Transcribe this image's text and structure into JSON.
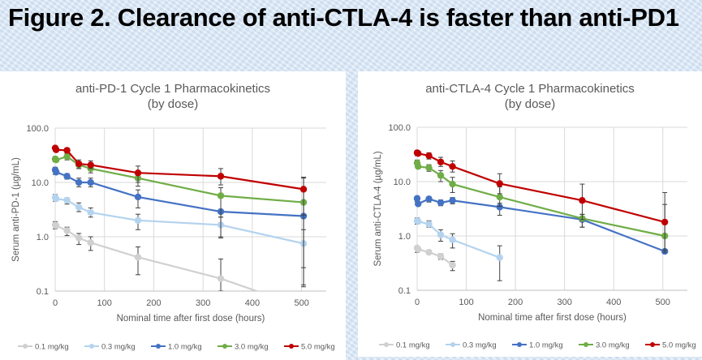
{
  "slide": {
    "title": "Figure 2. Clearance of anti-CTLA-4 is faster than anti-PD1"
  },
  "colors": {
    "0.1 mg/kg": "#d0d0d0",
    "0.3 mg/kg": "#b4d3ee",
    "1.0 mg/kg": "#4472c4",
    "3.0 mg/kg": "#70ad47",
    "5.0 mg/kg": "#c00000"
  },
  "chart_data": [
    {
      "type": "line",
      "title": "anti-PD-1 Cycle 1 Pharmacokinetics",
      "subtitle": "(by dose)",
      "xlabel": "Nominal time after first dose (hours)",
      "ylabel": "Serum anti-PD-1 (µg/mL)",
      "xlim": [
        0,
        550
      ],
      "ylim": [
        0.1,
        100
      ],
      "yscale": "log",
      "xticks": [
        "0",
        "100",
        "200",
        "300",
        "400",
        "500"
      ],
      "yticks": [
        "0.1",
        "1.0",
        "10.0",
        "100.0"
      ],
      "grid": true,
      "legend": "bottom",
      "x": [
        0,
        2,
        24,
        48,
        72,
        168,
        336,
        504
      ],
      "series": [
        {
          "name": "0.1 mg/kg",
          "values": [
            1.65,
            1.6,
            1.3,
            0.95,
            0.78,
            0.42,
            0.17,
            0.05
          ],
          "err": [
            [
              1.4,
              1.9
            ],
            null,
            [
              1.05,
              1.5
            ],
            [
              0.72,
              1.15
            ],
            [
              0.56,
              1.0
            ],
            [
              0.2,
              0.65
            ],
            [
              0.05,
              0.39
            ],
            null
          ]
        },
        {
          "name": "0.3 mg/kg",
          "values": [
            5.3,
            5.0,
            4.7,
            3.5,
            2.8,
            2.0,
            1.65,
            0.75
          ],
          "err": [
            [
              4.5,
              6.0
            ],
            null,
            [
              4.0,
              5.2
            ],
            [
              2.9,
              4.2
            ],
            [
              2.3,
              3.4
            ],
            [
              1.35,
              2.6
            ],
            [
              0.95,
              2.3
            ],
            [
              0.12,
              1.35
            ]
          ]
        },
        {
          "name": "1.0 mg/kg",
          "values": [
            17,
            15.5,
            13,
            10,
            10,
            5.4,
            2.9,
            2.4
          ],
          "err": [
            [
              14,
              19
            ],
            null,
            [
              11.5,
              14.5
            ],
            [
              8.3,
              12
            ],
            [
              8.3,
              12
            ],
            [
              3.4,
              7.3
            ],
            [
              1.0,
              3.2
            ],
            [
              0.27,
              4.3
            ]
          ]
        },
        {
          "name": "3.0 mg/kg",
          "values": [
            27,
            26,
            30,
            21,
            18,
            12,
            5.7,
            4.3
          ],
          "err": [
            [
              24,
              30
            ],
            null,
            [
              26,
              34
            ],
            [
              18,
              24
            ],
            [
              15,
              21
            ],
            [
              8.5,
              15
            ],
            [
              2.3,
              8
            ],
            [
              0.13,
              12
            ]
          ]
        },
        {
          "name": "5.0 mg/kg",
          "values": [
            43,
            40,
            39,
            22,
            21,
            15,
            13,
            7.5
          ],
          "err": [
            [
              38,
              47
            ],
            null,
            [
              35,
              43
            ],
            [
              18,
              26
            ],
            [
              18,
              25
            ],
            [
              10,
              20
            ],
            [
              9,
              18
            ],
            [
              2.5,
              12.5
            ]
          ]
        }
      ]
    },
    {
      "type": "line",
      "title": "anti-CTLA-4 Cycle 1 Pharmacokinetics",
      "subtitle": "(by dose)",
      "xlabel": "Nominal time after first dose (hours)",
      "ylabel": "Serum anti-CTLA-4 (µg/mL)",
      "xlim": [
        0,
        550
      ],
      "ylim": [
        0.1,
        100
      ],
      "yscale": "log",
      "xticks": [
        "0",
        "100",
        "200",
        "300",
        "400",
        "500"
      ],
      "yticks": [
        "0.1",
        "1.0",
        "10.0",
        "100.0"
      ],
      "grid": true,
      "legend": "bottom",
      "x": [
        0,
        2,
        24,
        48,
        72,
        168,
        336,
        504
      ],
      "series": [
        {
          "name": "0.1 mg/kg",
          "values": [
            0.6,
            0.57,
            0.5,
            0.42,
            0.29,
            null,
            null,
            null
          ],
          "err": [
            [
              0.5,
              0.65
            ],
            null,
            [
              0.46,
              0.55
            ],
            [
              0.37,
              0.47
            ],
            [
              0.23,
              0.34
            ],
            null,
            null,
            null
          ]
        },
        {
          "name": "0.3 mg/kg",
          "values": [
            1.9,
            1.85,
            1.65,
            1.05,
            0.85,
            0.4,
            null,
            null
          ],
          "err": [
            [
              1.65,
              2.15
            ],
            null,
            [
              1.45,
              1.9
            ],
            [
              0.8,
              1.3
            ],
            [
              0.6,
              1.1
            ],
            [
              0.15,
              0.66
            ],
            null,
            null
          ]
        },
        {
          "name": "1.0 mg/kg",
          "values": [
            4.9,
            3.9,
            4.8,
            4.1,
            4.5,
            3.4,
            2.0,
            0.52
          ],
          "err": [
            [
              4.3,
              5.4
            ],
            null,
            [
              4.2,
              5.3
            ],
            [
              3.6,
              4.6
            ],
            [
              3.9,
              5.1
            ],
            [
              2.4,
              4.0
            ],
            [
              1.45,
              2.5
            ],
            null
          ]
        },
        {
          "name": "3.0 mg/kg",
          "values": [
            22,
            19,
            18,
            13,
            9,
            5.2,
            2.1,
            1.0
          ],
          "err": [
            [
              19,
              25
            ],
            null,
            [
              15.5,
              20.5
            ],
            [
              10,
              16
            ],
            [
              6.3,
              12
            ],
            [
              3.5,
              8
            ],
            [
              1.45,
              2.5
            ],
            [
              0.55,
              3.8
            ]
          ]
        },
        {
          "name": "5.0 mg/kg",
          "values": [
            34,
            33,
            30,
            23,
            19,
            9.2,
            4.5,
            1.8
          ],
          "err": [
            [
              30,
              37
            ],
            null,
            [
              26,
              34
            ],
            [
              19,
              28
            ],
            [
              15,
              24
            ],
            [
              6,
              14
            ],
            [
              2,
              9
            ],
            [
              0.5,
              6.3
            ]
          ]
        }
      ]
    }
  ]
}
